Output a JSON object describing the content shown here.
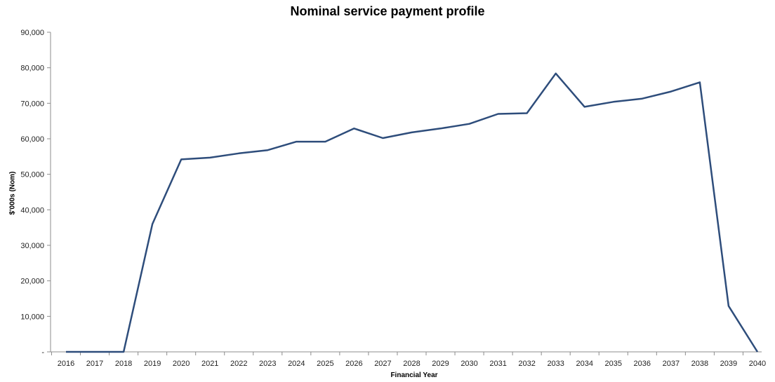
{
  "chart_data": {
    "type": "line",
    "title": "Nominal service payment profile",
    "xlabel": "Financial Year",
    "ylabel": "$'000s (Nom)",
    "ylim": [
      0,
      90000
    ],
    "y_ticks": [
      "-",
      "10,000",
      "20,000",
      "30,000",
      "40,000",
      "50,000",
      "60,000",
      "70,000",
      "80,000",
      "90,000"
    ],
    "categories": [
      "2016",
      "2017",
      "2018",
      "2019",
      "2020",
      "2021",
      "2022",
      "2023",
      "2024",
      "2025",
      "2026",
      "2027",
      "2028",
      "2029",
      "2030",
      "2031",
      "2032",
      "2033",
      "2034",
      "2035",
      "2036",
      "2037",
      "2038",
      "2039",
      "2040"
    ],
    "series": [
      {
        "values": [
          0,
          0,
          0,
          36000,
          54200,
          54700,
          55900,
          56800,
          59200,
          59200,
          62900,
          60200,
          61800,
          62900,
          64200,
          67000,
          67200,
          78400,
          69000,
          70400,
          71300,
          73300,
          75900,
          12900,
          0
        ],
        "color": "#2e4d7b"
      }
    ],
    "grid": false,
    "legend": "none"
  }
}
